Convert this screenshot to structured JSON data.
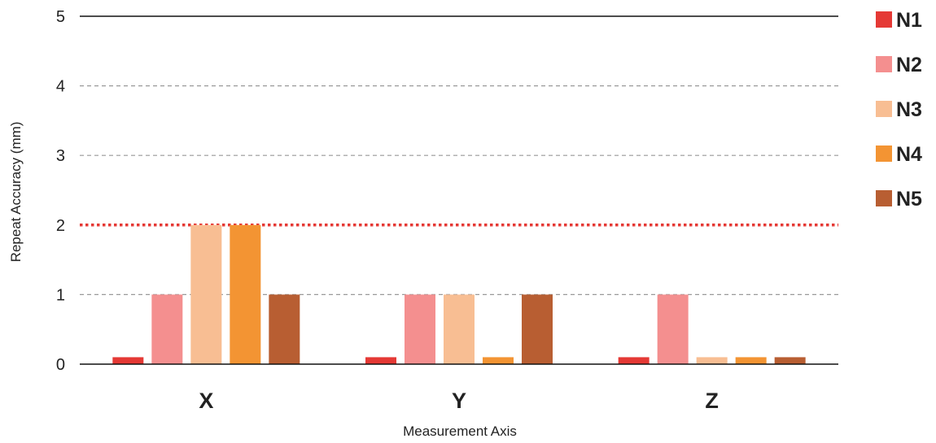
{
  "chart_data": {
    "type": "bar",
    "title": "",
    "xlabel": "Measurement Axis",
    "ylabel": "Repeat Accuracy (mm)",
    "categories": [
      "X",
      "Y",
      "Z"
    ],
    "ylim": [
      0,
      5
    ],
    "yticks": [
      "0",
      "1",
      "2",
      "3",
      "4",
      "5"
    ],
    "grid": true,
    "legend_position": "right",
    "reference_line": {
      "value": 2,
      "color": "#e53935",
      "style": "dotted"
    },
    "series": [
      {
        "name": "N1",
        "color": "#e53935",
        "values": [
          0.1,
          0.1,
          0.1
        ]
      },
      {
        "name": "N2",
        "color": "#f48f8f",
        "values": [
          1,
          1,
          1
        ]
      },
      {
        "name": "N3",
        "color": "#f8be93",
        "values": [
          2,
          1,
          0.1
        ]
      },
      {
        "name": "N4",
        "color": "#f39433",
        "values": [
          2,
          0.1,
          0.1
        ]
      },
      {
        "name": "N5",
        "color": "#b85e32",
        "values": [
          1,
          1,
          0.1
        ]
      }
    ]
  }
}
